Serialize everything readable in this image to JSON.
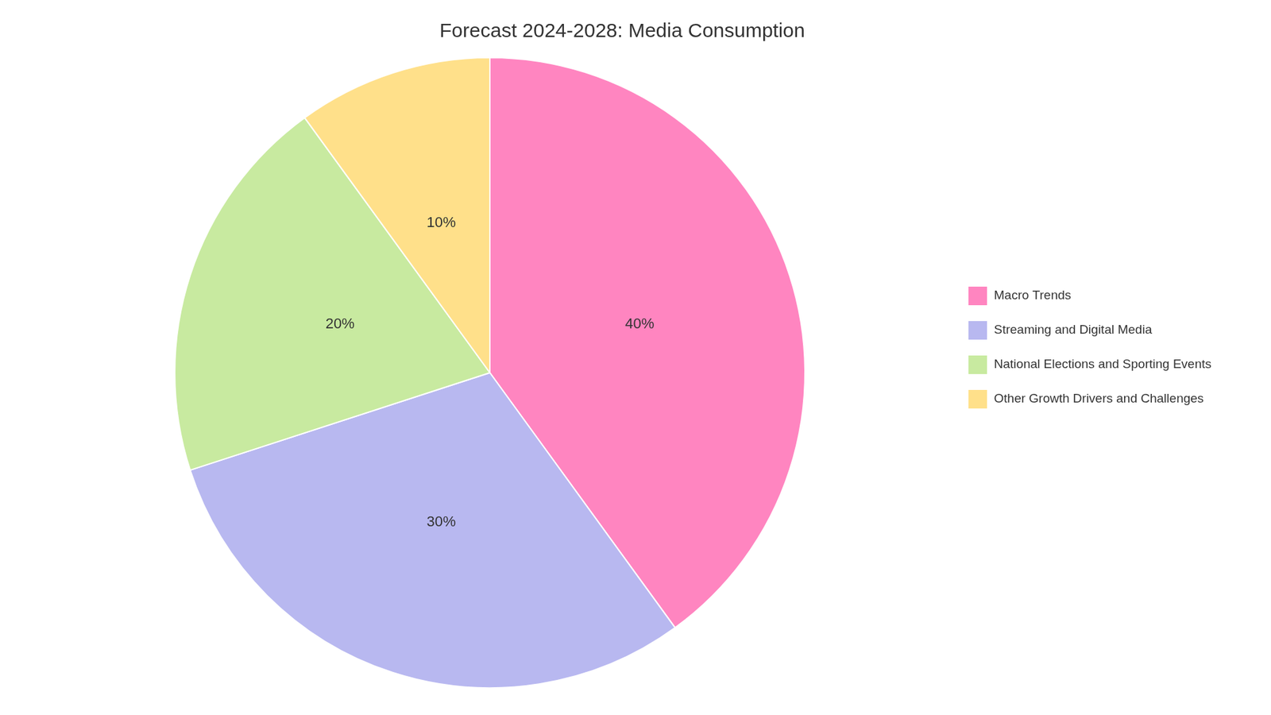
{
  "chart_data": {
    "type": "pie",
    "title": "Forecast 2024-2028: Media Consumption",
    "categories": [
      "Macro Trends",
      "Streaming and Digital Media",
      "National Elections and Sporting Events",
      "Other Growth Drivers and Challenges"
    ],
    "values": [
      40,
      30,
      20,
      10
    ],
    "value_labels": [
      "40%",
      "30%",
      "20%",
      "10%"
    ],
    "colors": [
      "#FF85C0",
      "#B8B8F0",
      "#C8EAA0",
      "#FFE08A"
    ],
    "data_labels": true,
    "legend": "right"
  }
}
